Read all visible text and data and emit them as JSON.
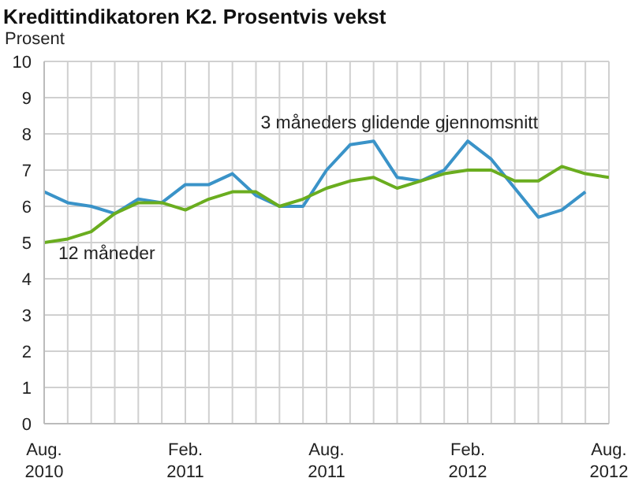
{
  "chart_data": {
    "type": "line",
    "title": "Kredittindikatoren K2. Prosentvis vekst",
    "ylabel": "Prosent",
    "categories": [
      "Aug. 2010",
      null,
      null,
      null,
      null,
      null,
      "Feb. 2011",
      null,
      null,
      null,
      null,
      null,
      "Aug. 2011",
      null,
      null,
      null,
      null,
      null,
      "Feb. 2012",
      null,
      null,
      null,
      null,
      null,
      "Aug. 2012"
    ],
    "series": [
      {
        "name": "3 måneders glidende gjennomsnitt",
        "color": "#3a93c8",
        "values": [
          6.4,
          6.1,
          6.0,
          5.8,
          6.2,
          6.1,
          6.6,
          6.6,
          6.9,
          6.3,
          6.0,
          6.0,
          7.0,
          7.7,
          7.8,
          6.8,
          6.7,
          7.0,
          7.8,
          7.3,
          6.5,
          5.7,
          5.9,
          6.4,
          null
        ]
      },
      {
        "name": "12 måneder",
        "color": "#6aad1f",
        "values": [
          5.0,
          5.1,
          5.3,
          5.8,
          6.1,
          6.1,
          5.9,
          6.2,
          6.4,
          6.4,
          6.0,
          6.2,
          6.5,
          6.7,
          6.8,
          6.5,
          6.7,
          6.9,
          7.0,
          7.0,
          6.7,
          6.7,
          7.1,
          6.9,
          6.8
        ]
      }
    ],
    "ylim": [
      0,
      10
    ],
    "yticks": [
      0,
      1,
      2,
      3,
      4,
      5,
      6,
      7,
      8,
      9,
      10
    ],
    "grid": true,
    "legend": false,
    "marker": "none",
    "line_style": "solid"
  }
}
